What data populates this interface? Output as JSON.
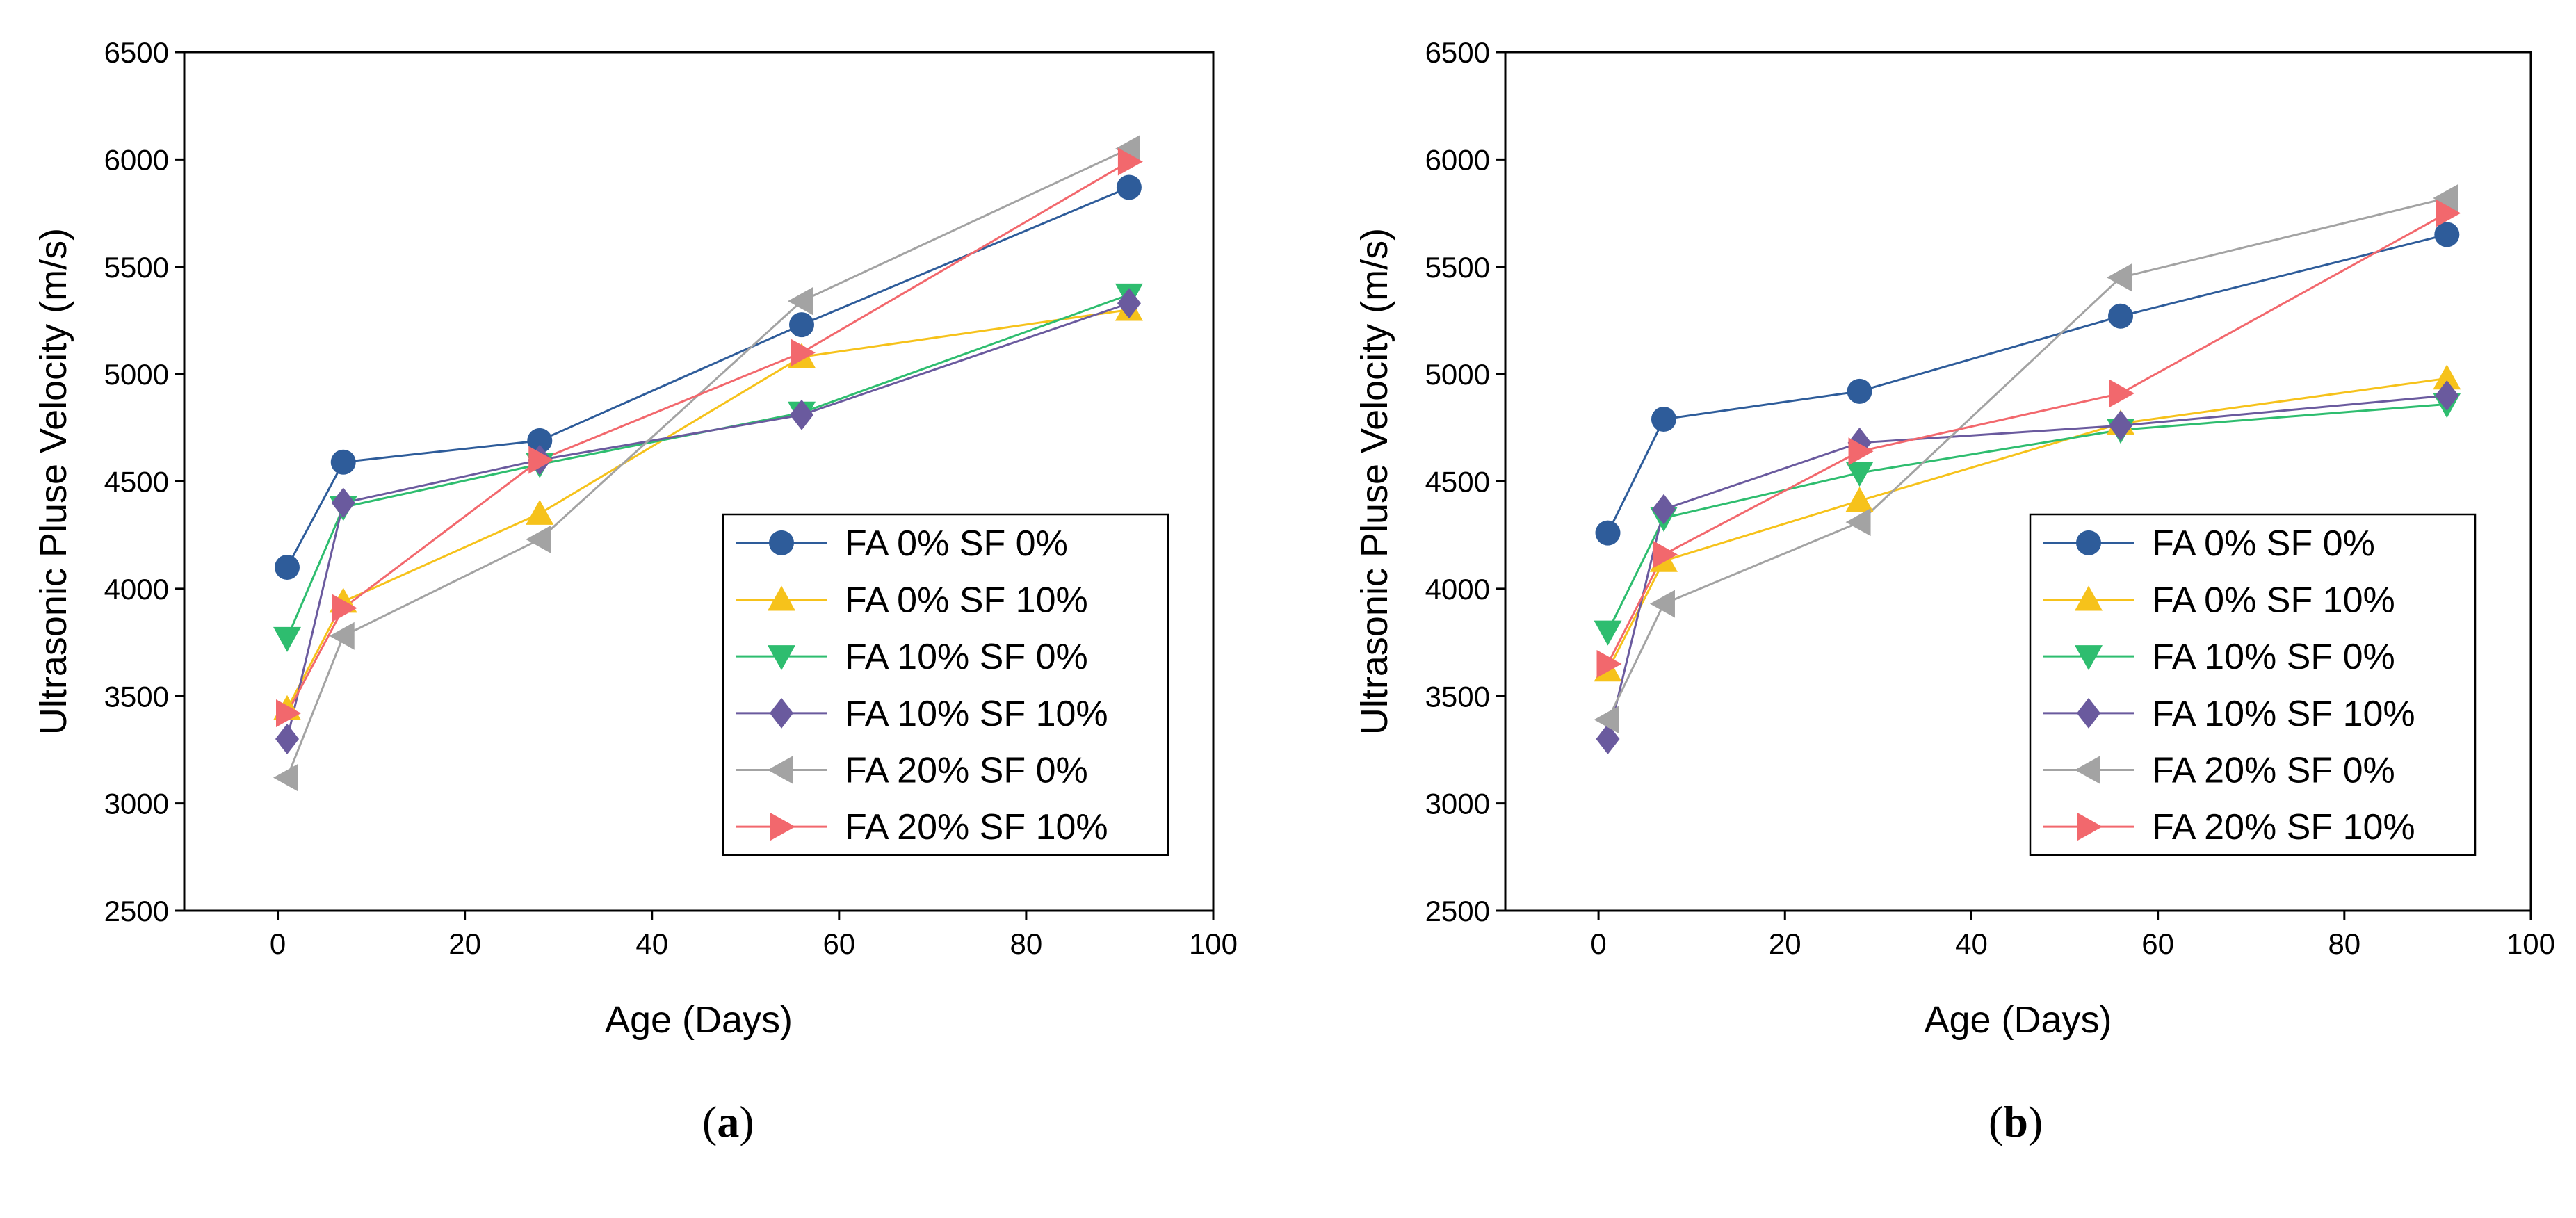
{
  "colors": {
    "FA 0% SF 0%": "#2e5c9a",
    "FA 0% SF 10%": "#f6c21b",
    "FA 10% SF 0%": "#2ebd6f",
    "FA 10% SF 10%": "#6a5a9e",
    "FA 20% SF 0%": "#a3a3a3",
    "FA 20% SF 10%": "#f2686d"
  },
  "chart_data": [
    {
      "type": "line",
      "caption_letter": "a",
      "xlabel": "Age (Days)",
      "ylabel": "Ultrasonic Pluse Velocity (m/s)",
      "xlim": [
        -10,
        100
      ],
      "ylim": [
        2500,
        6500
      ],
      "xticks": [
        0,
        20,
        40,
        60,
        80,
        100
      ],
      "yticks": [
        2500,
        3000,
        3500,
        4000,
        4500,
        5000,
        5500,
        6000,
        6500
      ],
      "x": [
        1,
        7,
        28,
        56,
        91
      ],
      "legend_position": "lower-right",
      "series": [
        {
          "name": "FA 0% SF 0%",
          "marker": "circle",
          "values": [
            4100,
            4590,
            4690,
            5230,
            5870
          ]
        },
        {
          "name": "FA 0% SF 10%",
          "marker": "triangle-up",
          "values": [
            3440,
            3940,
            4350,
            5080,
            5300
          ]
        },
        {
          "name": "FA 10% SF 0%",
          "marker": "triangle-down",
          "values": [
            3770,
            4380,
            4580,
            4820,
            5370
          ]
        },
        {
          "name": "FA 10% SF 10%",
          "marker": "diamond",
          "values": [
            3300,
            4400,
            4600,
            4810,
            5330
          ]
        },
        {
          "name": "FA 20% SF 0%",
          "marker": "triangle-left",
          "values": [
            3120,
            3780,
            4230,
            5340,
            6050
          ]
        },
        {
          "name": "FA 20% SF 10%",
          "marker": "triangle-right",
          "values": [
            3420,
            3910,
            4600,
            5100,
            5990
          ]
        }
      ]
    },
    {
      "type": "line",
      "caption_letter": "b",
      "xlabel": "Age (Days)",
      "ylabel": "Ultrasonic Pluse Velocity (m/s)",
      "xlim": [
        -10,
        100
      ],
      "ylim": [
        2500,
        6500
      ],
      "xticks": [
        0,
        20,
        40,
        60,
        80,
        100
      ],
      "yticks": [
        2500,
        3000,
        3500,
        4000,
        4500,
        5000,
        5500,
        6000,
        6500
      ],
      "x": [
        1,
        7,
        28,
        56,
        91
      ],
      "legend_position": "lower-right",
      "series": [
        {
          "name": "FA 0% SF 0%",
          "marker": "circle",
          "values": [
            4260,
            4790,
            4920,
            5270,
            5650
          ]
        },
        {
          "name": "FA 0% SF 10%",
          "marker": "triangle-up",
          "values": [
            3620,
            4130,
            4410,
            4770,
            4980
          ]
        },
        {
          "name": "FA 10% SF 0%",
          "marker": "triangle-down",
          "values": [
            3800,
            4330,
            4540,
            4740,
            4860
          ]
        },
        {
          "name": "FA 10% SF 10%",
          "marker": "diamond",
          "values": [
            3300,
            4370,
            4680,
            4760,
            4900
          ]
        },
        {
          "name": "FA 20% SF 0%",
          "marker": "triangle-left",
          "values": [
            3390,
            3930,
            4310,
            5450,
            5820
          ]
        },
        {
          "name": "FA 20% SF 10%",
          "marker": "triangle-right",
          "values": [
            3650,
            4160,
            4640,
            4910,
            5750
          ]
        }
      ]
    }
  ]
}
